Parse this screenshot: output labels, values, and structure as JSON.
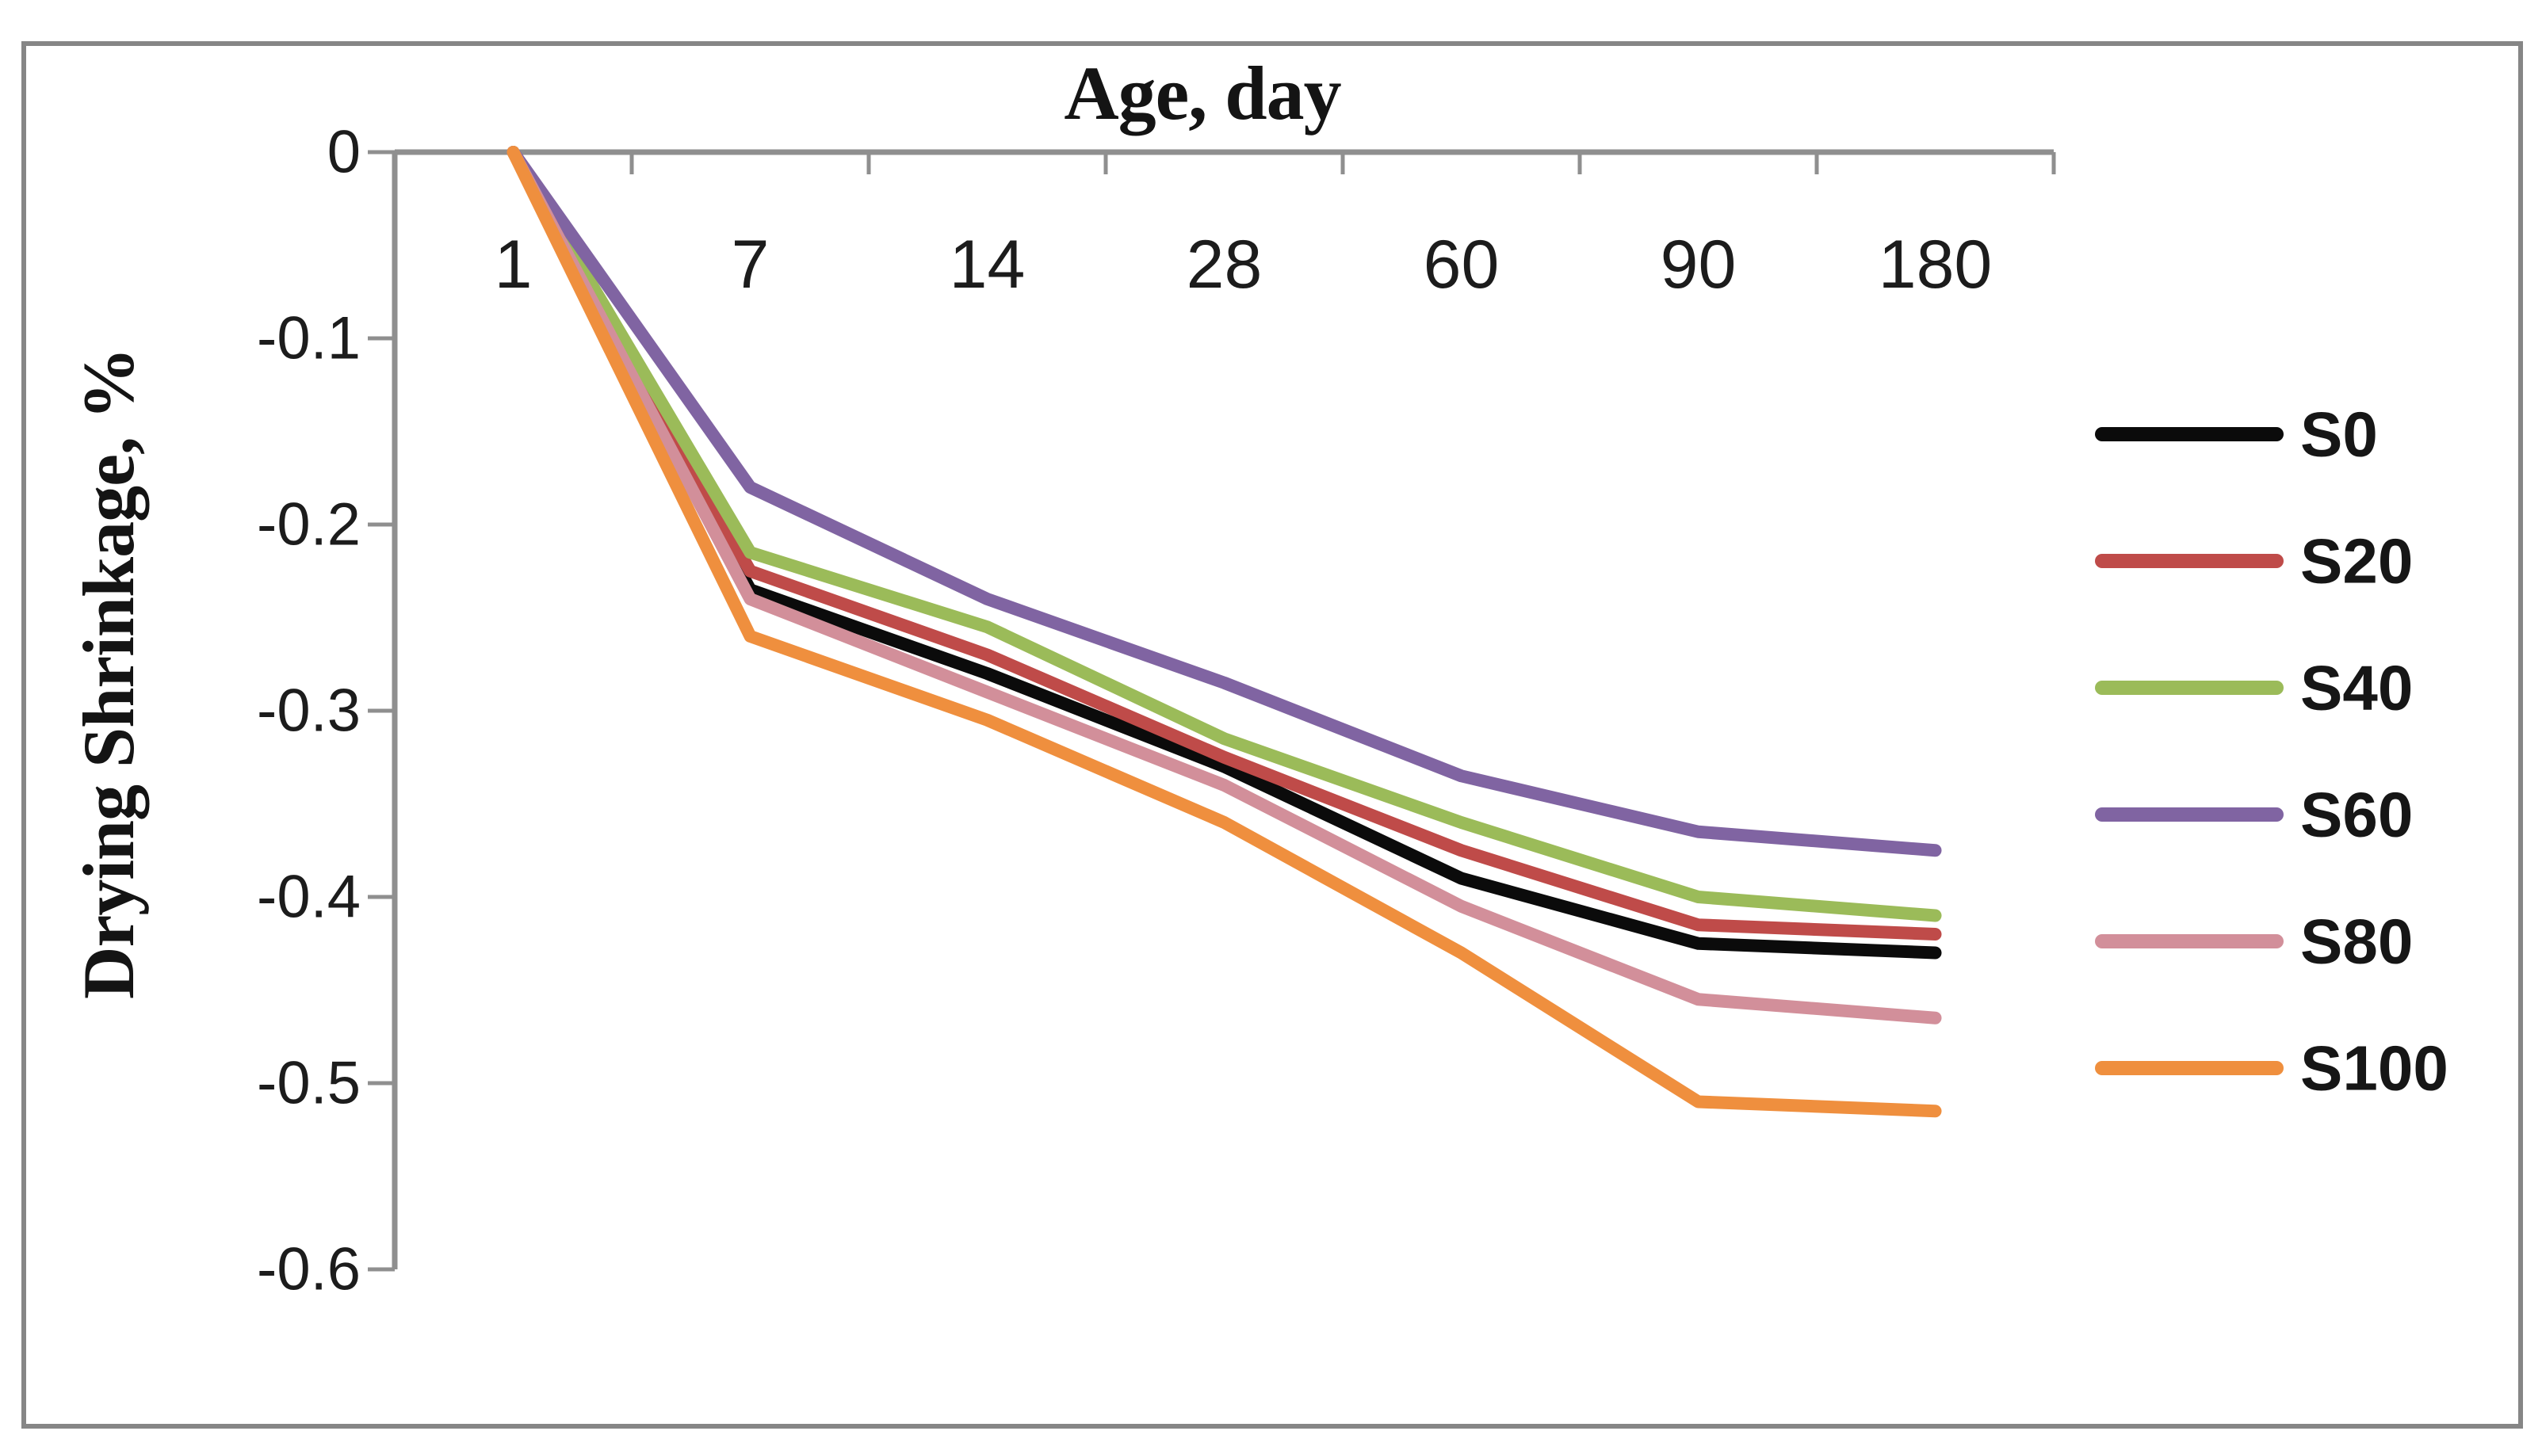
{
  "window": {
    "background": "#ffffff",
    "frame_border_color": "#868686"
  },
  "chart_data": {
    "type": "line",
    "title": "Age, day",
    "xlabel": "Age, day",
    "ylabel": "Drying Shrinkage, %",
    "categories": [
      "1",
      "7",
      "14",
      "28",
      "60",
      "90",
      "180"
    ],
    "y_ticks": [
      0,
      -0.1,
      -0.2,
      -0.3,
      -0.4,
      -0.5,
      -0.6
    ],
    "y_tick_labels": [
      "0",
      "-0.1",
      "-0.2",
      "-0.3",
      "-0.4",
      "-0.5",
      "-0.6"
    ],
    "ylim": [
      -0.6,
      0
    ],
    "grid": false,
    "legend_position": "right",
    "axis_color": "#8f8f8f",
    "tick_text_color": "#1c1c1c",
    "series": [
      {
        "name": "S0",
        "color": "#0b0b0b",
        "values": [
          0,
          -0.235,
          -0.28,
          -0.33,
          -0.39,
          -0.425,
          -0.43
        ]
      },
      {
        "name": "S20",
        "color": "#bf4b49",
        "values": [
          0,
          -0.225,
          -0.27,
          -0.325,
          -0.375,
          -0.415,
          -0.42
        ]
      },
      {
        "name": "S40",
        "color": "#9bbb59",
        "values": [
          0,
          -0.215,
          -0.255,
          -0.315,
          -0.36,
          -0.4,
          -0.41
        ]
      },
      {
        "name": "S60",
        "color": "#8064a2",
        "values": [
          0,
          -0.18,
          -0.24,
          -0.285,
          -0.335,
          -0.365,
          -0.375
        ]
      },
      {
        "name": "S80",
        "color": "#d28f9a",
        "values": [
          0,
          -0.24,
          -0.29,
          -0.34,
          -0.405,
          -0.455,
          -0.465
        ]
      },
      {
        "name": "S100",
        "color": "#ef8f3e",
        "values": [
          0,
          -0.26,
          -0.305,
          -0.36,
          -0.43,
          -0.51,
          -0.515
        ]
      }
    ]
  }
}
